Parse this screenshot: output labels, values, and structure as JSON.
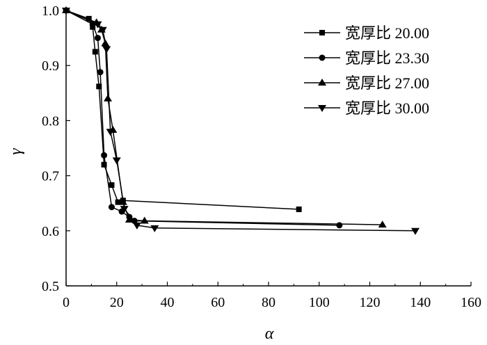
{
  "chart_data": {
    "type": "line",
    "xlabel": "α",
    "ylabel": "γ",
    "xlim": [
      0,
      160
    ],
    "ylim": [
      0.5,
      1.0
    ],
    "xticks": [
      "0",
      "20",
      "40",
      "60",
      "80",
      "100",
      "120",
      "140",
      "160"
    ],
    "yticks": [
      "0.5",
      "0.6",
      "0.7",
      "0.8",
      "0.9",
      "1.0"
    ],
    "legend_position": "top-right",
    "series": [
      {
        "name": "宽厚比 20.00",
        "marker": "square",
        "points": [
          [
            0,
            1.0
          ],
          [
            9,
            0.985
          ],
          [
            10.5,
            0.97
          ],
          [
            11.5,
            0.925
          ],
          [
            13,
            0.862
          ],
          [
            15,
            0.72
          ],
          [
            18,
            0.683
          ],
          [
            20.5,
            0.652
          ],
          [
            22.5,
            0.655
          ],
          [
            92,
            0.639
          ]
        ]
      },
      {
        "name": "宽厚比 23.30",
        "marker": "circle",
        "points": [
          [
            0,
            1.0
          ],
          [
            10.5,
            0.975
          ],
          [
            12.5,
            0.95
          ],
          [
            13.5,
            0.888
          ],
          [
            15,
            0.737
          ],
          [
            18,
            0.643
          ],
          [
            22,
            0.635
          ],
          [
            25,
            0.625
          ],
          [
            27,
            0.618
          ],
          [
            108,
            0.61
          ]
        ]
      },
      {
        "name": "宽厚比 27.00",
        "marker": "triangle-up",
        "points": [
          [
            0,
            1.0
          ],
          [
            12,
            0.978
          ],
          [
            14,
            0.965
          ],
          [
            15.5,
            0.94
          ],
          [
            16.5,
            0.84
          ],
          [
            18.5,
            0.783
          ],
          [
            22.5,
            0.652
          ],
          [
            25,
            0.62
          ],
          [
            31,
            0.618
          ],
          [
            125,
            0.611
          ]
        ]
      },
      {
        "name": "宽厚比 30.00",
        "marker": "triangle-down",
        "points": [
          [
            0,
            1.0
          ],
          [
            12.5,
            0.975
          ],
          [
            14.5,
            0.965
          ],
          [
            16,
            0.93
          ],
          [
            17.5,
            0.78
          ],
          [
            20,
            0.728
          ],
          [
            23,
            0.64
          ],
          [
            28,
            0.61
          ],
          [
            35,
            0.605
          ],
          [
            138,
            0.6
          ]
        ]
      }
    ]
  }
}
